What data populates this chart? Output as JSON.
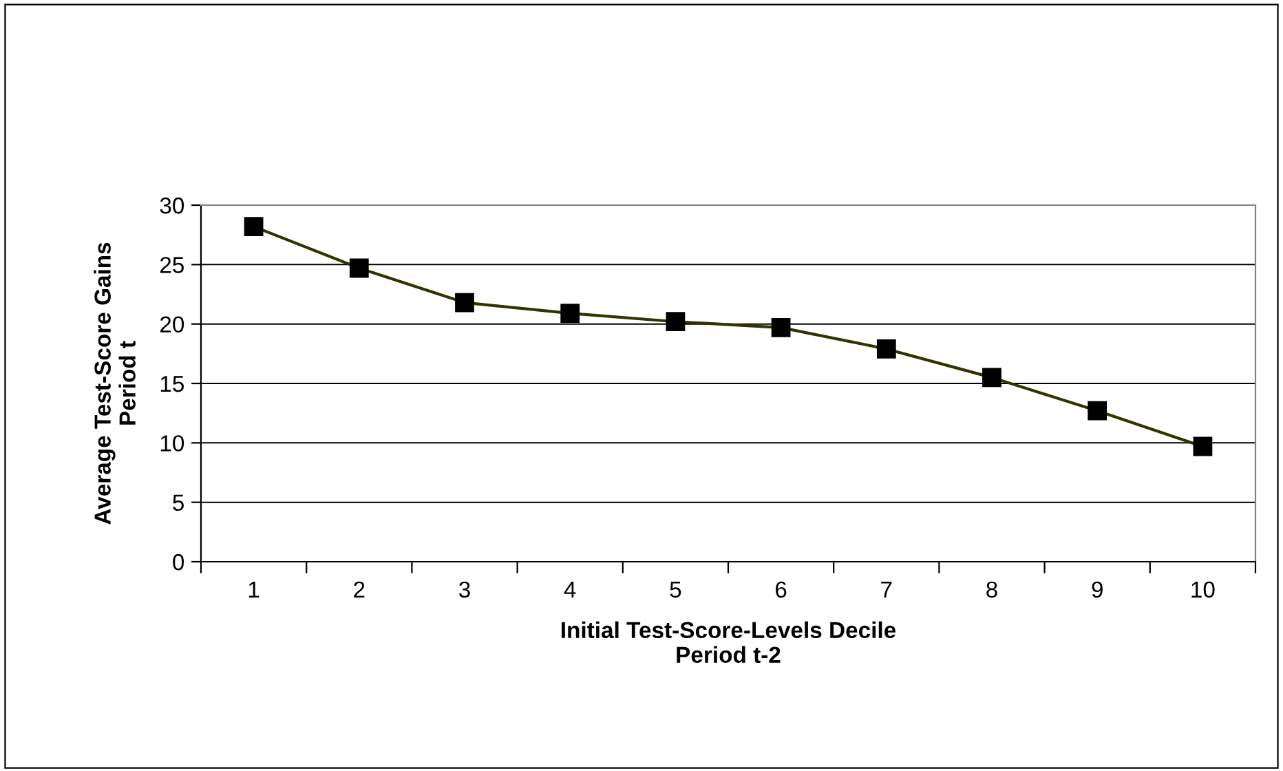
{
  "chart_data": {
    "type": "line",
    "xlabel": "Initial Test-Score-Levels Decile\nPeriod t-2",
    "ylabel": "Average Test-Score Gains\nPeriod t",
    "categories": [
      "1",
      "2",
      "3",
      "4",
      "5",
      "6",
      "7",
      "8",
      "9",
      "10"
    ],
    "series": [
      {
        "color": "#333300",
        "values": [
          28.2,
          24.7,
          21.8,
          20.9,
          20.2,
          19.7,
          17.9,
          15.5,
          12.7,
          9.7
        ]
      }
    ],
    "ylim": [
      0,
      30
    ],
    "yticks": [
      0,
      5,
      10,
      15,
      20,
      25,
      30
    ],
    "grid": "y",
    "marker": "square",
    "line_style": "solid"
  }
}
